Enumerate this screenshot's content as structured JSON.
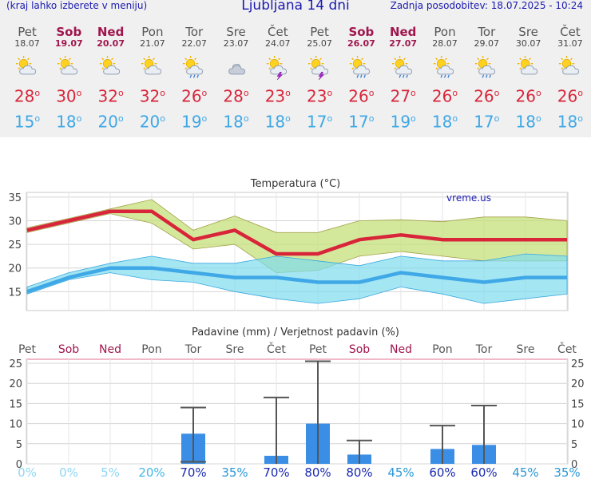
{
  "header": {
    "left_note": "(kraj lahko izberete v meniju)",
    "title": "Ljubljana 14 dni",
    "updated": "Zadnja posodobitev: 18.07.2025 - 10:24"
  },
  "days": [
    {
      "name": "Pet",
      "date": "18.07",
      "icon": "sun-cloud-icon",
      "tmax": "28",
      "tmin": "15",
      "weekend": false
    },
    {
      "name": "Sob",
      "date": "19.07",
      "icon": "sun-cloud-icon",
      "tmax": "30",
      "tmin": "18",
      "weekend": true
    },
    {
      "name": "Ned",
      "date": "20.07",
      "icon": "sun-cloud-icon",
      "tmax": "32",
      "tmin": "20",
      "weekend": true
    },
    {
      "name": "Pon",
      "date": "21.07",
      "icon": "sun-cloud-icon",
      "tmax": "32",
      "tmin": "20",
      "weekend": false
    },
    {
      "name": "Tor",
      "date": "22.07",
      "icon": "sun-cloud-rain-icon",
      "tmax": "26",
      "tmin": "19",
      "weekend": false
    },
    {
      "name": "Sre",
      "date": "23.07",
      "icon": "cloudy-icon",
      "tmax": "28",
      "tmin": "18",
      "weekend": false
    },
    {
      "name": "Čet",
      "date": "24.07",
      "icon": "thunderstorm-icon",
      "tmax": "23",
      "tmin": "18",
      "weekend": false
    },
    {
      "name": "Pet",
      "date": "25.07",
      "icon": "thunderstorm-icon",
      "tmax": "23",
      "tmin": "17",
      "weekend": false
    },
    {
      "name": "Sob",
      "date": "26.07",
      "icon": "sun-cloud-rain-icon",
      "tmax": "26",
      "tmin": "17",
      "weekend": true
    },
    {
      "name": "Ned",
      "date": "27.07",
      "icon": "sun-cloud-rain-icon",
      "tmax": "27",
      "tmin": "19",
      "weekend": true
    },
    {
      "name": "Pon",
      "date": "28.07",
      "icon": "sun-cloud-rain-icon",
      "tmax": "26",
      "tmin": "18",
      "weekend": false
    },
    {
      "name": "Tor",
      "date": "29.07",
      "icon": "sun-cloud-rain-icon",
      "tmax": "26",
      "tmin": "17",
      "weekend": false
    },
    {
      "name": "Sre",
      "date": "30.07",
      "icon": "sun-cloud-icon",
      "tmax": "26",
      "tmin": "18",
      "weekend": false
    },
    {
      "name": "Čet",
      "date": "31.07",
      "icon": "sun-cloud-icon",
      "tmax": "26",
      "tmin": "18",
      "weekend": false
    }
  ],
  "degree_symbol": "o",
  "colors": {
    "max_line": "#d8253a",
    "max_band": "#c5e07a",
    "min_line": "#3fa8e6",
    "min_band": "#7fdcee",
    "bars": "#3a8ee6",
    "whisker": "#555555",
    "weekend": "#a0154d"
  },
  "chart_data": [
    {
      "type": "line",
      "title": "Temperatura (°C)",
      "watermark": "vreme.us",
      "x": [
        "18.07",
        "19.07",
        "20.07",
        "21.07",
        "22.07",
        "23.07",
        "24.07",
        "25.07",
        "26.07",
        "27.07",
        "28.07",
        "29.07",
        "30.07",
        "31.07"
      ],
      "ylim": [
        11,
        36
      ],
      "yticks": [
        15,
        20,
        25,
        30,
        35
      ],
      "grid": true,
      "series": [
        {
          "values": [
            28,
            30,
            32,
            32,
            26,
            28,
            23,
            23,
            26,
            27,
            26,
            26,
            26,
            26
          ],
          "band_low": [
            27.5,
            29.5,
            31.5,
            29.5,
            24,
            25,
            19,
            19.5,
            22.5,
            23.5,
            22.5,
            21.5,
            21.5,
            21.5
          ],
          "band_high": [
            28.5,
            30.5,
            32.5,
            34.5,
            28,
            31,
            27.5,
            27.5,
            30,
            30.2,
            29.8,
            30.8,
            30.8,
            30
          ]
        },
        {
          "values": [
            15,
            18,
            20,
            20,
            19,
            18,
            18,
            17,
            17,
            19,
            18,
            17,
            18,
            18
          ],
          "band_low": [
            14.5,
            17.5,
            19,
            17.5,
            17,
            15,
            13.5,
            12.5,
            13.5,
            16,
            14.5,
            12.5,
            13.5,
            14.5
          ],
          "band_high": [
            16,
            19,
            21,
            22.5,
            21,
            21,
            22.5,
            21.5,
            20.5,
            22.5,
            21.5,
            21.5,
            23,
            22.5
          ]
        }
      ]
    },
    {
      "type": "bar",
      "title": "Padavine (mm) / Verjetnost padavin (%)",
      "categories": [
        "Pet",
        "Sob",
        "Ned",
        "Pon",
        "Tor",
        "Sre",
        "Čet",
        "Pet",
        "Sob",
        "Ned",
        "Pon",
        "Tor",
        "Sre",
        "Čet"
      ],
      "weekend": [
        false,
        true,
        true,
        false,
        false,
        false,
        false,
        false,
        true,
        true,
        false,
        false,
        false,
        false
      ],
      "ylim": [
        0,
        26
      ],
      "yticks": [
        0,
        5,
        10,
        15,
        20,
        25
      ],
      "grid": true,
      "values": [
        0,
        0,
        0,
        0,
        7.5,
        0,
        2,
        10,
        2.3,
        0,
        3.7,
        4.7,
        0,
        0
      ],
      "whisker_low": [
        null,
        null,
        null,
        null,
        0.5,
        null,
        0,
        0,
        0,
        null,
        0,
        0,
        null,
        null
      ],
      "whisker_high": [
        null,
        null,
        null,
        null,
        14,
        null,
        16.5,
        25.5,
        5.8,
        null,
        9.5,
        14.5,
        null,
        null
      ],
      "probability": [
        "0%",
        "0%",
        "5%",
        "20%",
        "70%",
        "35%",
        "70%",
        "80%",
        "80%",
        "45%",
        "60%",
        "60%",
        "45%",
        "35%"
      ],
      "probability_values": [
        0,
        0,
        5,
        20,
        70,
        35,
        70,
        80,
        80,
        45,
        60,
        60,
        45,
        35
      ]
    }
  ]
}
